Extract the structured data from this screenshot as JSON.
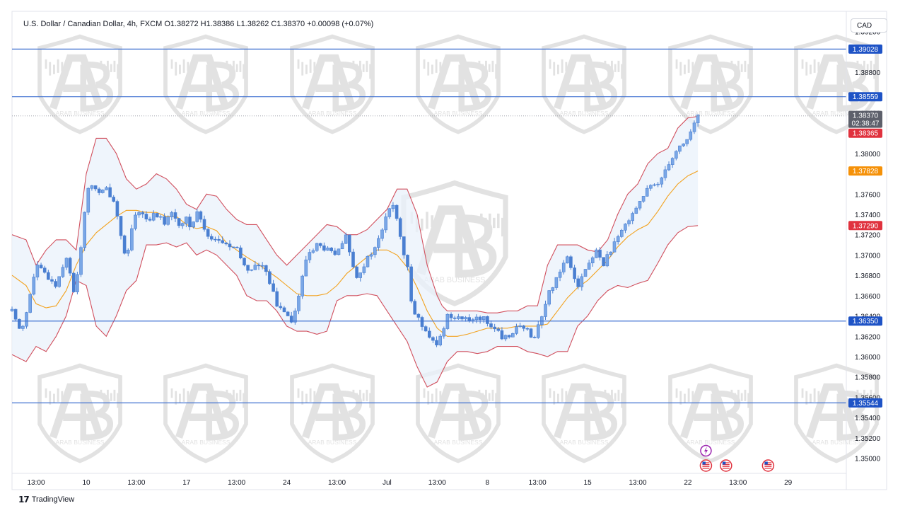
{
  "header": {
    "symbol_line": "U.S. Dollar / Canadian Dollar, 4h, FXCM",
    "ohlc": "O1.38272  H1.38386  L1.38262  C1.38370  +0.00098 (+0.07%)"
  },
  "currency_label": "CAD",
  "footer": {
    "brand": "TradingView"
  },
  "watermark_text": "ARAB BUSINESS",
  "colors": {
    "candle_up": "#4a7fd1",
    "candle_down": "#4a7fd1",
    "bollinger_band": "#d1505e",
    "bollinger_fill": "#e9f2fb",
    "basis_line": "#f2a21e",
    "horizontal_line": "#3d6fd0",
    "label_blue": "#1e53c6",
    "label_red": "#e0323e",
    "label_orange": "#f59108",
    "label_gray": "#5d606b"
  },
  "chart_data": {
    "type": "candlestick",
    "title": "",
    "ylim": [
      1.3485,
      1.394
    ],
    "y_ticks": [
      "1.39200",
      "1.38800",
      "1.38400",
      "1.38000",
      "1.37600",
      "1.37400",
      "1.37200",
      "1.37000",
      "1.36800",
      "1.36600",
      "1.36400",
      "1.36200",
      "1.36000",
      "1.35800",
      "1.35600",
      "1.35400",
      "1.35200",
      "1.35000"
    ],
    "x_ticks": [
      {
        "label": "13:00",
        "x": 0.0
      },
      {
        "label": "10",
        "x": 5.0
      },
      {
        "label": "13:00",
        "x": 10.0
      },
      {
        "label": "17",
        "x": 15.0
      },
      {
        "label": "13:00",
        "x": 20.0
      },
      {
        "label": "24",
        "x": 25.0
      },
      {
        "label": "13:00",
        "x": 30.0
      },
      {
        "label": "Jul",
        "x": 35.0
      },
      {
        "label": "13:00",
        "x": 40.0
      },
      {
        "label": "8",
        "x": 45.0
      },
      {
        "label": "13:00",
        "x": 50.0
      },
      {
        "label": "15",
        "x": 55.0
      },
      {
        "label": "13:00",
        "x": 60.0
      },
      {
        "label": "22",
        "x": 65.0
      },
      {
        "label": "13:00",
        "x": 70.0
      },
      {
        "label": "29",
        "x": 75.0
      }
    ],
    "x_range": [
      -2.4,
      80.8
    ],
    "horizontal_levels": [
      {
        "value": 1.39028,
        "label": "1.39028"
      },
      {
        "value": 1.38559,
        "label": "1.38559"
      },
      {
        "value": 1.3635,
        "label": "1.36350"
      },
      {
        "value": 1.35544,
        "label": "1.35544"
      }
    ],
    "price_tags": [
      {
        "value": 1.3837,
        "label": "1.38370",
        "sub": "02:38:47",
        "kind": "last"
      },
      {
        "value": 1.38365,
        "label": "1.38365",
        "kind": "upper"
      },
      {
        "value": 1.37828,
        "label": "1.37828",
        "kind": "basis"
      },
      {
        "value": 1.3729,
        "label": "1.37290",
        "kind": "lower"
      }
    ],
    "price_path": [
      [
        -2.4,
        1.3645
      ],
      [
        -1.5,
        1.3625
      ],
      [
        -0.8,
        1.365
      ],
      [
        0,
        1.369
      ],
      [
        1,
        1.368
      ],
      [
        2,
        1.367
      ],
      [
        3,
        1.37
      ],
      [
        3.8,
        1.366
      ],
      [
        4.5,
        1.371
      ],
      [
        5,
        1.376
      ],
      [
        5.6,
        1.377
      ],
      [
        6.3,
        1.376
      ],
      [
        7,
        1.3765
      ],
      [
        7.7,
        1.3755
      ],
      [
        8.3,
        1.373
      ],
      [
        9,
        1.369
      ],
      [
        9.6,
        1.373
      ],
      [
        10.3,
        1.3745
      ],
      [
        11,
        1.3735
      ],
      [
        12,
        1.374
      ],
      [
        13,
        1.373
      ],
      [
        13.5,
        1.3745
      ],
      [
        14,
        1.373
      ],
      [
        15,
        1.3735
      ],
      [
        15.5,
        1.3725
      ],
      [
        16,
        1.3745
      ],
      [
        17,
        1.372
      ],
      [
        18,
        1.3715
      ],
      [
        19,
        1.371
      ],
      [
        20,
        1.3705
      ],
      [
        21,
        1.3685
      ],
      [
        22,
        1.369
      ],
      [
        23,
        1.3685
      ],
      [
        24,
        1.365
      ],
      [
        25,
        1.3645
      ],
      [
        25.5,
        1.3635
      ],
      [
        26,
        1.365
      ],
      [
        27,
        1.37
      ],
      [
        28,
        1.371
      ],
      [
        29,
        1.3705
      ],
      [
        30,
        1.37
      ],
      [
        31,
        1.372
      ],
      [
        31.5,
        1.369
      ],
      [
        32,
        1.368
      ],
      [
        32.7,
        1.369
      ],
      [
        33.3,
        1.37
      ],
      [
        34,
        1.371
      ],
      [
        35,
        1.374
      ],
      [
        35.6,
        1.375
      ],
      [
        36,
        1.3735
      ],
      [
        36.5,
        1.3705
      ],
      [
        37,
        1.369
      ],
      [
        37.5,
        1.365
      ],
      [
        38,
        1.364
      ],
      [
        38.5,
        1.363
      ],
      [
        39,
        1.362
      ],
      [
        40,
        1.361
      ],
      [
        40.5,
        1.3625
      ],
      [
        41,
        1.364
      ],
      [
        42,
        1.364
      ],
      [
        43,
        1.3635
      ],
      [
        44,
        1.364
      ],
      [
        45,
        1.3635
      ],
      [
        46,
        1.3625
      ],
      [
        46.5,
        1.3615
      ],
      [
        47,
        1.362
      ],
      [
        48,
        1.363
      ],
      [
        49,
        1.3625
      ],
      [
        49.5,
        1.3615
      ],
      [
        50,
        1.363
      ],
      [
        50.5,
        1.364
      ],
      [
        51,
        1.366
      ],
      [
        52,
        1.368
      ],
      [
        53,
        1.37
      ],
      [
        53.5,
        1.3685
      ],
      [
        54,
        1.367
      ],
      [
        55,
        1.369
      ],
      [
        56,
        1.3705
      ],
      [
        56.5,
        1.369
      ],
      [
        57,
        1.37
      ],
      [
        58,
        1.3715
      ],
      [
        59,
        1.3735
      ],
      [
        60,
        1.375
      ],
      [
        61,
        1.3765
      ],
      [
        62,
        1.377
      ],
      [
        63,
        1.379
      ],
      [
        64,
        1.3805
      ],
      [
        65,
        1.3815
      ],
      [
        66,
        1.3837
      ]
    ],
    "upper_band": [
      [
        -2.4,
        1.372
      ],
      [
        -1,
        1.3715
      ],
      [
        0,
        1.369
      ],
      [
        1,
        1.3705
      ],
      [
        2,
        1.3715
      ],
      [
        3,
        1.3715
      ],
      [
        4,
        1.3705
      ],
      [
        5,
        1.378
      ],
      [
        6,
        1.3815
      ],
      [
        7,
        1.3815
      ],
      [
        8,
        1.38
      ],
      [
        9,
        1.3775
      ],
      [
        10,
        1.3765
      ],
      [
        11,
        1.377
      ],
      [
        12,
        1.378
      ],
      [
        13,
        1.3775
      ],
      [
        14,
        1.3765
      ],
      [
        15,
        1.375
      ],
      [
        16,
        1.3745
      ],
      [
        17,
        1.376
      ],
      [
        18,
        1.3758
      ],
      [
        19,
        1.3745
      ],
      [
        20,
        1.3735
      ],
      [
        21,
        1.373
      ],
      [
        22,
        1.373
      ],
      [
        23,
        1.3715
      ],
      [
        24,
        1.37
      ],
      [
        25,
        1.369
      ],
      [
        26,
        1.37
      ],
      [
        27,
        1.371
      ],
      [
        28,
        1.372
      ],
      [
        29,
        1.373
      ],
      [
        30,
        1.3728
      ],
      [
        31,
        1.372
      ],
      [
        32,
        1.372
      ],
      [
        33,
        1.3725
      ],
      [
        34,
        1.3735
      ],
      [
        35,
        1.3745
      ],
      [
        36,
        1.3765
      ],
      [
        37,
        1.3765
      ],
      [
        38,
        1.374
      ],
      [
        39,
        1.369
      ],
      [
        40,
        1.366
      ],
      [
        40.5,
        1.365
      ],
      [
        41,
        1.3645
      ],
      [
        42,
        1.3645
      ],
      [
        43,
        1.3645
      ],
      [
        44,
        1.3645
      ],
      [
        45,
        1.3643
      ],
      [
        46,
        1.3643
      ],
      [
        47,
        1.3645
      ],
      [
        48,
        1.3645
      ],
      [
        49,
        1.365
      ],
      [
        50,
        1.365
      ],
      [
        51,
        1.369
      ],
      [
        52,
        1.371
      ],
      [
        53,
        1.371
      ],
      [
        54,
        1.371
      ],
      [
        55,
        1.3705
      ],
      [
        56,
        1.3703
      ],
      [
        57,
        1.3715
      ],
      [
        58,
        1.374
      ],
      [
        59,
        1.376
      ],
      [
        60,
        1.377
      ],
      [
        61,
        1.379
      ],
      [
        62,
        1.38
      ],
      [
        63,
        1.3805
      ],
      [
        64,
        1.3825
      ],
      [
        65,
        1.3835
      ],
      [
        66,
        1.38365
      ]
    ],
    "lower_band": [
      [
        -2.4,
        1.3602
      ],
      [
        -1,
        1.3595
      ],
      [
        0,
        1.361
      ],
      [
        1,
        1.3605
      ],
      [
        2,
        1.362
      ],
      [
        3,
        1.364
      ],
      [
        4,
        1.3675
      ],
      [
        5,
        1.367
      ],
      [
        6,
        1.363
      ],
      [
        7,
        1.362
      ],
      [
        8,
        1.364
      ],
      [
        9,
        1.3665
      ],
      [
        10,
        1.3675
      ],
      [
        11,
        1.371
      ],
      [
        12,
        1.371
      ],
      [
        13,
        1.3712
      ],
      [
        14,
        1.3708
      ],
      [
        15,
        1.3712
      ],
      [
        16,
        1.37
      ],
      [
        17,
        1.3705
      ],
      [
        18,
        1.37
      ],
      [
        19,
        1.369
      ],
      [
        20,
        1.368
      ],
      [
        21,
        1.366
      ],
      [
        22,
        1.3655
      ],
      [
        23,
        1.3655
      ],
      [
        24,
        1.3645
      ],
      [
        25,
        1.363
      ],
      [
        26,
        1.3625
      ],
      [
        27,
        1.3625
      ],
      [
        28,
        1.3622
      ],
      [
        29,
        1.3625
      ],
      [
        30,
        1.3655
      ],
      [
        31,
        1.366
      ],
      [
        32,
        1.366
      ],
      [
        33,
        1.3662
      ],
      [
        34,
        1.366
      ],
      [
        35,
        1.3645
      ],
      [
        36,
        1.363
      ],
      [
        37,
        1.3615
      ],
      [
        38,
        1.359
      ],
      [
        39,
        1.357
      ],
      [
        40,
        1.3575
      ],
      [
        41,
        1.3595
      ],
      [
        42,
        1.3605
      ],
      [
        43,
        1.3605
      ],
      [
        44,
        1.3603
      ],
      [
        45,
        1.3605
      ],
      [
        46,
        1.361
      ],
      [
        47,
        1.361
      ],
      [
        48,
        1.361
      ],
      [
        49,
        1.3605
      ],
      [
        50,
        1.3603
      ],
      [
        51,
        1.36
      ],
      [
        52,
        1.3605
      ],
      [
        53,
        1.3605
      ],
      [
        54,
        1.363
      ],
      [
        55,
        1.364
      ],
      [
        56,
        1.3655
      ],
      [
        57,
        1.3665
      ],
      [
        58,
        1.367
      ],
      [
        59,
        1.3668
      ],
      [
        60,
        1.3672
      ],
      [
        61,
        1.3675
      ],
      [
        62,
        1.3692
      ],
      [
        63,
        1.371
      ],
      [
        64,
        1.3722
      ],
      [
        65,
        1.3728
      ],
      [
        66,
        1.3729
      ]
    ],
    "basis_line": [
      [
        -2.4,
        1.368
      ],
      [
        -1,
        1.367
      ],
      [
        0,
        1.3652
      ],
      [
        1,
        1.3648
      ],
      [
        2,
        1.365
      ],
      [
        3,
        1.3665
      ],
      [
        4,
        1.369
      ],
      [
        5,
        1.371
      ],
      [
        6,
        1.3722
      ],
      [
        7,
        1.373
      ],
      [
        8,
        1.3738
      ],
      [
        9,
        1.3744
      ],
      [
        10,
        1.3744
      ],
      [
        11,
        1.3742
      ],
      [
        12,
        1.3742
      ],
      [
        13,
        1.3738
      ],
      [
        14,
        1.3738
      ],
      [
        15,
        1.373
      ],
      [
        16,
        1.3726
      ],
      [
        17,
        1.3728
      ],
      [
        18,
        1.3724
      ],
      [
        19,
        1.3712
      ],
      [
        20,
        1.3705
      ],
      [
        21,
        1.3698
      ],
      [
        22,
        1.3692
      ],
      [
        23,
        1.3685
      ],
      [
        24,
        1.3678
      ],
      [
        25,
        1.367
      ],
      [
        26,
        1.3662
      ],
      [
        27,
        1.366
      ],
      [
        28,
        1.366
      ],
      [
        29,
        1.3662
      ],
      [
        30,
        1.367
      ],
      [
        31,
        1.3682
      ],
      [
        32,
        1.369
      ],
      [
        33,
        1.3698
      ],
      [
        34,
        1.3705
      ],
      [
        35,
        1.3705
      ],
      [
        36,
        1.37
      ],
      [
        37,
        1.3688
      ],
      [
        38,
        1.3668
      ],
      [
        39,
        1.3645
      ],
      [
        40,
        1.3628
      ],
      [
        41,
        1.362
      ],
      [
        42,
        1.362
      ],
      [
        43,
        1.3622
      ],
      [
        44,
        1.3625
      ],
      [
        45,
        1.3628
      ],
      [
        46,
        1.3628
      ],
      [
        47,
        1.3628
      ],
      [
        48,
        1.363
      ],
      [
        49,
        1.363
      ],
      [
        50,
        1.363
      ],
      [
        51,
        1.3632
      ],
      [
        52,
        1.3645
      ],
      [
        53,
        1.3658
      ],
      [
        54,
        1.3668
      ],
      [
        55,
        1.3675
      ],
      [
        56,
        1.3685
      ],
      [
        57,
        1.3695
      ],
      [
        58,
        1.3708
      ],
      [
        59,
        1.3718
      ],
      [
        60,
        1.3725
      ],
      [
        61,
        1.373
      ],
      [
        62,
        1.3743
      ],
      [
        63,
        1.3758
      ],
      [
        64,
        1.377
      ],
      [
        65,
        1.3778
      ],
      [
        66,
        1.37828
      ]
    ],
    "event_icons": [
      {
        "kind": "lightning",
        "x": 66.8
      },
      {
        "kind": "us-flag",
        "x": 66.8
      },
      {
        "kind": "us-flag",
        "x": 68.8
      },
      {
        "kind": "us-flag",
        "x": 73.0
      }
    ]
  }
}
